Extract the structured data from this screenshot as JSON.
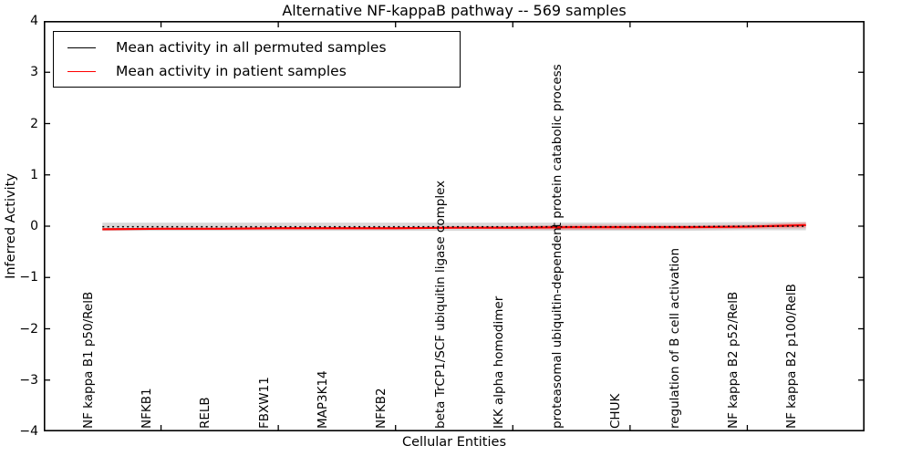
{
  "chart_data": {
    "type": "line",
    "title": "Alternative NF-kappaB pathway -- 569 samples",
    "xlabel": "Cellular Entities",
    "ylabel": "Inferred Activity",
    "ylim": [
      -4,
      4
    ],
    "grid": false,
    "legend_position": "upper left",
    "ytick_values": [
      4,
      3,
      2,
      1,
      0,
      -1,
      -2,
      -3,
      -4
    ],
    "ytick_labels": [
      "4",
      "3",
      "2",
      "1",
      "0",
      "−1",
      "−2",
      "−3",
      "−4"
    ],
    "xtick_marks_at": [
      1,
      3,
      5,
      7,
      9,
      11
    ],
    "categories": [
      "NF kappa B1 p50/RelB",
      "NFKB1",
      "RELB",
      "FBXW11",
      "MAP3K14",
      "NFKB2",
      "beta TrCP1/SCF ubiquitin ligase complex",
      "IKK alpha homodimer",
      "proteasomal ubiquitin-dependent protein catabolic process",
      "CHUK",
      "regulation of B cell activation",
      "NF kappa B2 p52/RelB",
      "NF kappa B2 p100/RelB"
    ],
    "series": [
      {
        "name": "Mean activity in all permuted samples",
        "color": "#000000",
        "style": "dotted",
        "values": [
          -0.01,
          -0.01,
          -0.01,
          -0.01,
          -0.01,
          -0.01,
          -0.01,
          -0.01,
          -0.01,
          -0.01,
          -0.01,
          0.0,
          0.0
        ],
        "band": 0.08,
        "band_color": "rgba(0,0,0,0.15)"
      },
      {
        "name": "Mean activity in patient samples",
        "color": "#ff0000",
        "style": "solid",
        "values": [
          -0.06,
          -0.05,
          -0.05,
          -0.04,
          -0.04,
          -0.04,
          -0.03,
          -0.03,
          -0.02,
          -0.02,
          -0.02,
          -0.01,
          0.02
        ],
        "band": [
          0.02,
          0.015,
          0.015,
          0.015,
          0.015,
          0.015,
          0.02,
          0.03,
          0.05,
          0.05,
          0.04,
          0.04,
          0.06
        ],
        "band_color": "rgba(255,0,0,0.22)"
      }
    ]
  },
  "colors": {
    "background": "#ffffff",
    "axis": "#000000",
    "permuted_line": "#000000",
    "patient_line": "#ff0000"
  }
}
